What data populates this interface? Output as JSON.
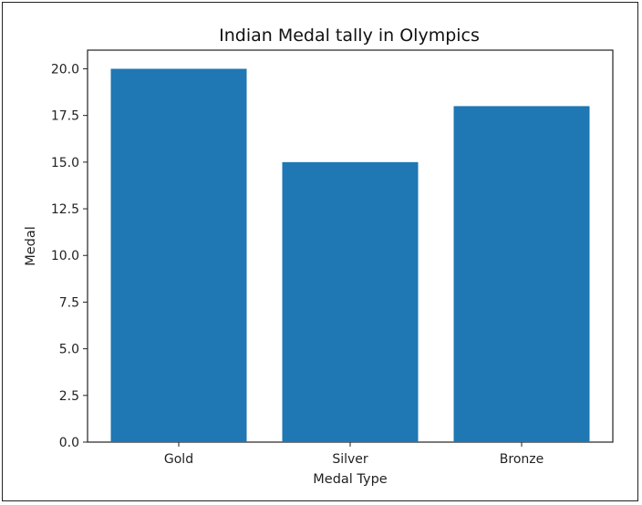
{
  "chart_data": {
    "type": "bar",
    "title": "Indian Medal tally in Olympics",
    "xlabel": "Medal Type",
    "ylabel": "Medal",
    "categories": [
      "Gold",
      "Silver",
      "Bronze"
    ],
    "values": [
      20,
      15,
      18
    ],
    "ylim": [
      0,
      21
    ],
    "yticks": [
      "0.0",
      "2.5",
      "5.0",
      "7.5",
      "10.0",
      "12.5",
      "15.0",
      "17.5",
      "20.0"
    ],
    "ytick_values": [
      0,
      2.5,
      5,
      7.5,
      10,
      12.5,
      15,
      17.5,
      20
    ],
    "bar_color": "#1f77b4",
    "grid": false,
    "legend": "none"
  }
}
